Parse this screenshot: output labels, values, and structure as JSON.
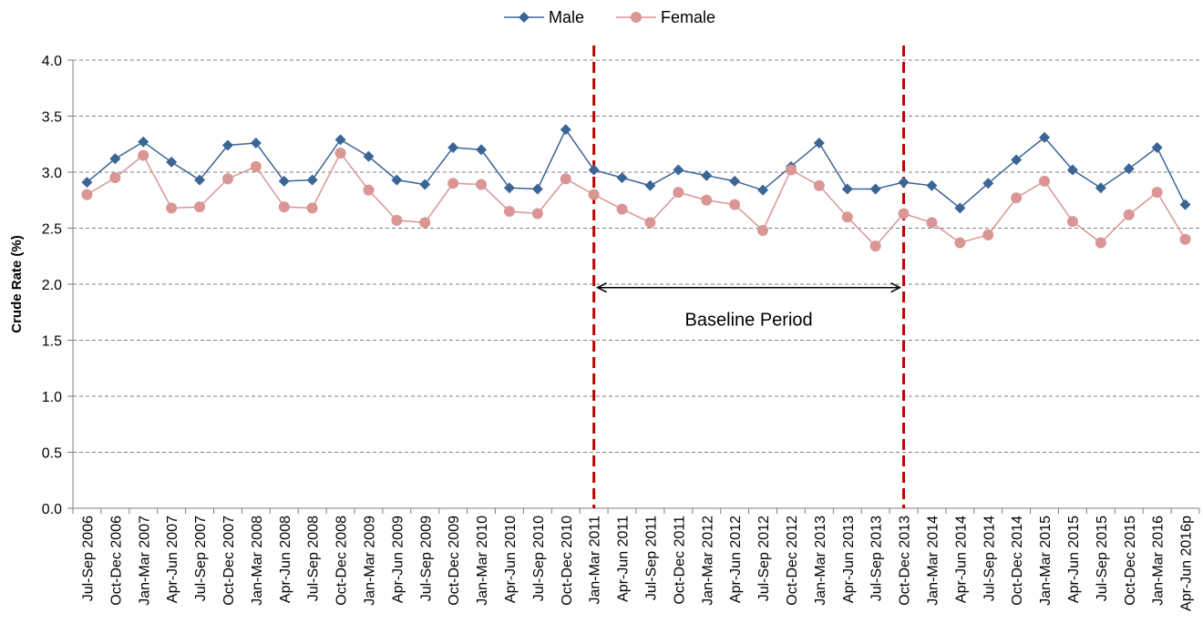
{
  "chart_data": {
    "type": "line",
    "title": "",
    "xlabel": "",
    "ylabel": "Crude Rate (%)",
    "ylim": [
      0,
      4.0
    ],
    "ytick_step": 0.5,
    "grid": "horizontal dashed",
    "legend_position": "top-center",
    "categories": [
      "Jul-Sep 2006",
      "Oct-Dec 2006",
      "Jan-Mar 2007",
      "Apr-Jun 2007",
      "Jul-Sep 2007",
      "Oct-Dec 2007",
      "Jan-Mar 2008",
      "Apr-Jun 2008",
      "Jul-Sep 2008",
      "Oct-Dec 2008",
      "Jan-Mar 2009",
      "Apr-Jun 2009",
      "Jul-Sep 2009",
      "Oct-Dec 2009",
      "Jan-Mar 2010",
      "Apr-Jun 2010",
      "Jul-Sep 2010",
      "Oct-Dec 2010",
      "Jan-Mar 2011",
      "Apr-Jun 2011",
      "Jul-Sep 2011",
      "Oct-Dec 2011",
      "Jan-Mar 2012",
      "Apr-Jun 2012",
      "Jul-Sep 2012",
      "Oct-Dec 2012",
      "Jan-Mar 2013",
      "Apr-Jun 2013",
      "Jul-Sep  2013",
      "Oct-Dec 2013",
      "Jan-Mar 2014",
      "Apr-Jun 2014",
      "Jul-Sep 2014",
      "Oct-Dec 2014",
      "Jan-Mar 2015",
      "Apr-Jun 2015",
      "Jul-Sep 2015",
      "Oct-Dec 2015",
      "Jan-Mar 2016",
      "Apr-Jun 2016p"
    ],
    "series": [
      {
        "name": "Male",
        "color": "#3B6596",
        "marker": "diamond",
        "values": [
          2.91,
          3.12,
          3.27,
          3.09,
          2.93,
          3.24,
          3.26,
          2.92,
          2.93,
          3.29,
          3.14,
          2.93,
          2.89,
          3.22,
          3.2,
          2.86,
          2.85,
          3.38,
          3.02,
          2.95,
          2.88,
          3.02,
          2.97,
          2.92,
          2.84,
          3.05,
          3.26,
          2.85,
          2.85,
          2.91,
          2.88,
          2.68,
          2.9,
          3.11,
          3.31,
          3.02,
          2.86,
          3.03,
          3.22,
          2.71
        ]
      },
      {
        "name": "Female",
        "color": "#D99694",
        "marker": "circle",
        "values": [
          2.8,
          2.95,
          3.15,
          2.68,
          2.69,
          2.94,
          3.05,
          2.69,
          2.68,
          3.17,
          2.84,
          2.57,
          2.55,
          2.9,
          2.89,
          2.65,
          2.63,
          2.94,
          2.8,
          2.67,
          2.55,
          2.82,
          2.75,
          2.71,
          2.48,
          3.02,
          2.88,
          2.6,
          2.34,
          2.63,
          2.55,
          2.37,
          2.44,
          2.77,
          2.92,
          2.56,
          2.37,
          2.62,
          2.82,
          2.4
        ]
      }
    ],
    "annotations": {
      "baseline_label": "Baseline Period",
      "vline_color": "#C00000",
      "vline_start_category": "Jan-Mar 2011",
      "vline_end_category": "Oct-Dec 2013",
      "arrow_y_value": 1.97
    }
  }
}
